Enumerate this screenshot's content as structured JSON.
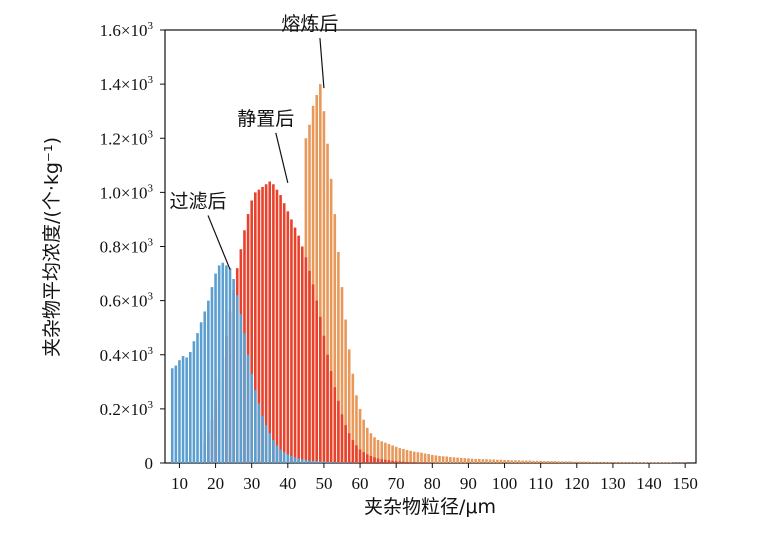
{
  "chart_data": {
    "type": "bar",
    "title": "",
    "xlabel": "夹杂物粒径/μm",
    "ylabel": "夹杂物平均浓度/(个·kg⁻¹)",
    "xlim": [
      6,
      153
    ],
    "ylim": [
      0,
      1600
    ],
    "x_ticks": [
      10,
      20,
      30,
      40,
      50,
      60,
      70,
      80,
      90,
      100,
      110,
      120,
      130,
      140,
      150
    ],
    "y_ticks": [
      {
        "value": 0,
        "label": "0"
      },
      {
        "value": 200,
        "label": "0.2×10",
        "exp": "3"
      },
      {
        "value": 400,
        "label": "0.4×10",
        "exp": "3"
      },
      {
        "value": 600,
        "label": "0.6×10",
        "exp": "3"
      },
      {
        "value": 800,
        "label": "0.8×10",
        "exp": "3"
      },
      {
        "value": 1000,
        "label": "1.0×10",
        "exp": "3"
      },
      {
        "value": 1200,
        "label": "1.2×10",
        "exp": "3"
      },
      {
        "value": 1400,
        "label": "1.4×10",
        "exp": "3"
      },
      {
        "value": 1600,
        "label": "1.6×10",
        "exp": "3"
      }
    ],
    "grid": false,
    "series": [
      {
        "name": "熔炼后",
        "color": "#e8995a",
        "x": [
          17,
          18,
          19,
          20,
          21,
          22,
          23,
          24,
          25,
          26,
          27,
          28,
          29,
          30,
          31,
          32,
          33,
          34,
          35,
          36,
          37,
          38,
          39,
          40,
          41,
          42,
          43,
          44,
          45,
          46,
          47,
          48,
          49,
          50,
          51,
          52,
          53,
          54,
          55,
          56,
          57,
          58,
          59,
          60,
          61,
          62,
          63,
          64,
          65,
          66,
          67,
          68,
          69,
          70,
          71,
          72,
          73,
          74,
          75,
          76,
          77,
          78,
          79,
          80,
          81,
          82,
          83,
          84,
          85,
          86,
          87,
          88,
          89,
          90,
          91,
          92,
          93,
          94,
          95,
          96,
          97,
          98,
          99,
          100,
          101,
          102,
          103,
          104,
          105,
          106,
          107,
          108,
          109,
          110,
          111,
          112,
          113,
          114,
          115,
          116,
          117,
          118,
          119,
          120,
          121,
          122,
          123,
          124,
          125,
          126,
          127,
          128,
          129,
          130,
          131,
          132,
          133,
          134,
          135,
          136,
          137,
          138,
          139,
          140,
          141,
          142,
          143,
          144,
          145,
          146,
          147,
          148,
          149,
          150
        ],
        "values": [
          0,
          0,
          0,
          0,
          0,
          0,
          0,
          0,
          0,
          0,
          0,
          0,
          0,
          0,
          0,
          0,
          0,
          0,
          0,
          0,
          0,
          0,
          0,
          0,
          0,
          0,
          0,
          0,
          1200,
          1250,
          1320,
          1360,
          1400,
          1300,
          1180,
          1050,
          920,
          780,
          650,
          530,
          420,
          330,
          250,
          200,
          160,
          130,
          110,
          95,
          85,
          80,
          75,
          70,
          65,
          60,
          55,
          52,
          48,
          45,
          42,
          40,
          38,
          35,
          33,
          30,
          28,
          26,
          25,
          24,
          22,
          21,
          20,
          19,
          18,
          17,
          16,
          15,
          15,
          14,
          14,
          13,
          13,
          12,
          12,
          11,
          11,
          10,
          10,
          10,
          9,
          9,
          9,
          8,
          8,
          8,
          7,
          7,
          7,
          7,
          6,
          6,
          6,
          6,
          5,
          5,
          5,
          5,
          5,
          4,
          4,
          4,
          4,
          4,
          4,
          3,
          3,
          3,
          3,
          3,
          3,
          3,
          2,
          2,
          2,
          2,
          2,
          2,
          2,
          2,
          2,
          2,
          1,
          1,
          1,
          1
        ]
      },
      {
        "name": "静置后",
        "color": "#e8412c",
        "x": [
          17,
          18,
          19,
          20,
          21,
          22,
          23,
          24,
          25,
          26,
          27,
          28,
          29,
          30,
          31,
          32,
          33,
          34,
          35,
          36,
          37,
          38,
          39,
          40,
          41,
          42,
          43,
          44,
          45,
          46,
          47,
          48,
          49,
          50,
          51,
          52,
          53,
          54,
          55,
          56,
          57,
          58,
          59,
          60,
          61,
          62,
          63,
          64,
          65,
          66,
          67,
          68,
          69,
          70,
          71,
          72,
          73,
          74,
          75,
          76,
          77,
          78,
          79,
          80
        ],
        "values": [
          70,
          110,
          160,
          230,
          310,
          390,
          470,
          560,
          640,
          720,
          790,
          860,
          920,
          970,
          1000,
          1010,
          1020,
          1030,
          1040,
          1030,
          1010,
          990,
          960,
          930,
          900,
          870,
          840,
          800,
          760,
          710,
          660,
          600,
          540,
          470,
          400,
          340,
          280,
          230,
          180,
          140,
          110,
          85,
          65,
          50,
          40,
          32,
          26,
          21,
          17,
          14,
          12,
          10,
          8,
          7,
          6,
          5,
          4,
          3,
          3,
          2,
          2,
          2,
          1,
          1
        ]
      },
      {
        "name": "过滤后",
        "color": "#5b9fd0",
        "x": [
          8,
          9,
          10,
          11,
          12,
          13,
          14,
          15,
          16,
          17,
          18,
          19,
          20,
          21,
          22,
          23,
          24,
          25,
          26,
          27,
          28,
          29,
          30,
          31,
          32,
          33,
          34,
          35,
          36,
          37,
          38,
          39,
          40,
          41,
          42,
          43,
          44,
          45,
          46,
          47,
          48,
          49,
          50,
          51,
          52,
          53,
          54,
          55,
          56,
          57,
          58,
          59,
          60
        ],
        "values": [
          350,
          360,
          380,
          395,
          390,
          410,
          450,
          480,
          520,
          560,
          600,
          650,
          700,
          730,
          740,
          730,
          720,
          680,
          620,
          550,
          480,
          400,
          330,
          270,
          220,
          175,
          140,
          110,
          85,
          65,
          50,
          40,
          32,
          26,
          21,
          17,
          14,
          12,
          10,
          8,
          7,
          6,
          5,
          4,
          4,
          3,
          3,
          2,
          2,
          2,
          1,
          1,
          1
        ]
      }
    ],
    "annotations": [
      {
        "text": "熔炼后",
        "x": 50,
        "y": 1400
      },
      {
        "text": "静置后",
        "x": 40,
        "y": 1050
      },
      {
        "text": "过滤后",
        "x": 24,
        "y": 730
      }
    ]
  }
}
